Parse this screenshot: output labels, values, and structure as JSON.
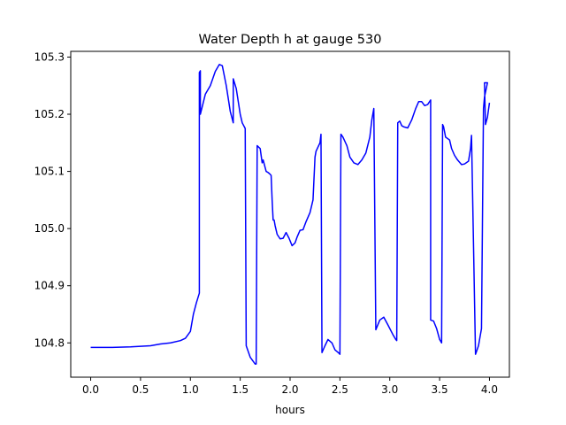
{
  "chart_data": {
    "type": "line",
    "title": "Water Depth h at gauge 530",
    "xlabel": "hours",
    "ylabel": "",
    "xlim": [
      -0.2,
      4.2
    ],
    "ylim": [
      104.74,
      105.31
    ],
    "xticks": [
      0.0,
      0.5,
      1.0,
      1.5,
      2.0,
      2.5,
      3.0,
      3.5,
      4.0
    ],
    "xtick_labels": [
      "0.0",
      "0.5",
      "1.0",
      "1.5",
      "2.0",
      "2.5",
      "3.0",
      "3.5",
      "4.0"
    ],
    "yticks": [
      104.8,
      104.9,
      105.0,
      105.1,
      105.2,
      105.3
    ],
    "ytick_labels": [
      "104.8",
      "104.9",
      "105.0",
      "105.1",
      "105.2",
      "105.3"
    ],
    "grid": false,
    "series": [
      {
        "color": "#0000ff",
        "x": [
          0.0,
          0.2,
          0.4,
          0.6,
          0.7,
          0.8,
          0.9,
          0.95,
          1.0,
          1.03,
          1.06,
          1.09,
          1.09,
          1.1,
          1.1,
          1.15,
          1.2,
          1.25,
          1.29,
          1.32,
          1.36,
          1.4,
          1.43,
          1.43,
          1.46,
          1.5,
          1.52,
          1.55,
          1.56,
          1.6,
          1.65,
          1.66,
          1.67,
          1.7,
          1.72,
          1.73,
          1.76,
          1.78,
          1.8,
          1.81,
          1.82,
          1.83,
          1.84,
          1.85,
          1.87,
          1.9,
          1.93,
          1.96,
          1.99,
          2.02,
          2.05,
          2.07,
          2.1,
          2.13,
          2.16,
          2.2,
          2.23,
          2.25,
          2.26,
          2.3,
          2.31,
          2.32,
          2.35,
          2.38,
          2.42,
          2.45,
          2.49,
          2.5,
          2.51,
          2.53,
          2.57,
          2.6,
          2.64,
          2.68,
          2.72,
          2.76,
          2.8,
          2.82,
          2.84,
          2.86,
          2.9,
          2.94,
          2.98,
          3.03,
          3.06,
          3.07,
          3.08,
          3.1,
          3.12,
          3.14,
          3.18,
          3.22,
          3.26,
          3.29,
          3.32,
          3.35,
          3.38,
          3.41,
          3.41,
          3.44,
          3.47,
          3.5,
          3.52,
          3.53,
          3.54,
          3.56,
          3.6,
          3.62,
          3.65,
          3.68,
          3.72,
          3.75,
          3.79,
          3.81,
          3.82,
          3.86,
          3.87,
          3.89,
          3.92,
          3.94,
          3.95,
          3.98
        ],
        "y": [
          104.792,
          104.792,
          104.793,
          104.795,
          104.798,
          104.8,
          104.804,
          104.808,
          104.82,
          104.85,
          104.87,
          104.887,
          105.273,
          105.276,
          105.2,
          105.235,
          105.25,
          105.275,
          105.287,
          105.285,
          105.25,
          105.205,
          105.185,
          105.262,
          105.245,
          105.2,
          105.185,
          105.175,
          104.795,
          104.775,
          104.763,
          104.763,
          105.145,
          105.14,
          105.115,
          105.12,
          105.1,
          105.098,
          105.095,
          105.093,
          105.05,
          105.015,
          105.015,
          105.005,
          104.99,
          104.982,
          104.983,
          104.993,
          104.983,
          104.97,
          104.975,
          104.985,
          104.997,
          104.998,
          105.012,
          105.028,
          105.05,
          105.125,
          105.135,
          105.15,
          105.165,
          104.783,
          104.795,
          104.806,
          104.8,
          104.788,
          104.782,
          104.78,
          105.165,
          105.16,
          105.145,
          105.125,
          105.115,
          105.112,
          105.12,
          105.132,
          105.16,
          105.19,
          105.21,
          104.823,
          104.84,
          104.845,
          104.832,
          104.815,
          104.806,
          104.804,
          105.185,
          105.188,
          105.18,
          105.178,
          105.176,
          105.19,
          105.21,
          105.222,
          105.222,
          105.215,
          105.217,
          105.225,
          104.84,
          104.838,
          104.825,
          104.806,
          104.8,
          105.182,
          105.178,
          105.16,
          105.155,
          105.14,
          105.128,
          105.12,
          105.112,
          105.113,
          105.118,
          105.14,
          105.163,
          104.78,
          104.785,
          104.795,
          104.825,
          105.21,
          105.23,
          105.255
        ],
        "x2": [
          3.95,
          3.96,
          3.98,
          4.0
        ],
        "y2": [
          105.255,
          105.182,
          105.195,
          105.22
        ]
      }
    ]
  }
}
